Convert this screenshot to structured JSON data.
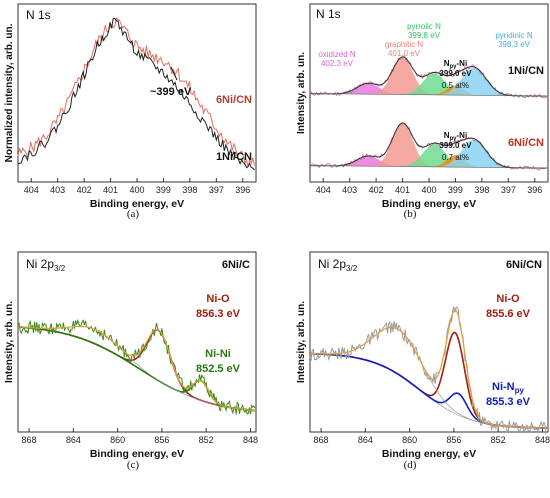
{
  "chart_data": [
    {
      "id": "a",
      "type": "line",
      "title": "N 1s",
      "xlabel": "Binding energy, eV",
      "ylabel": "Normalized intensity, arb. un.",
      "xlim": [
        404.5,
        395.5
      ],
      "x_reversed": true,
      "xticks": [
        404,
        403,
        402,
        401,
        400,
        399,
        398,
        397,
        396
      ],
      "caption": "(a)",
      "annotation": "~399 eV",
      "series": [
        {
          "name": "6Ni/CN",
          "color": "#e07060",
          "x": [
            404.5,
            404,
            403.5,
            403,
            402.5,
            402,
            401.5,
            401,
            400.8,
            400.5,
            400,
            399.5,
            399,
            398.5,
            398,
            397.5,
            397,
            396.5,
            396,
            395.5
          ],
          "y": [
            0.16,
            0.2,
            0.26,
            0.36,
            0.5,
            0.66,
            0.82,
            0.93,
            0.95,
            0.9,
            0.8,
            0.75,
            0.72,
            0.65,
            0.55,
            0.43,
            0.32,
            0.22,
            0.14,
            0.1
          ]
        },
        {
          "name": "1Ni/CN",
          "color": "#222222",
          "x": [
            404.5,
            404,
            403.5,
            403,
            402.5,
            402,
            401.5,
            401,
            400.8,
            400.5,
            400,
            399.5,
            399,
            398.5,
            398,
            397.5,
            397,
            396.5,
            396,
            395.5
          ],
          "y": [
            0.13,
            0.17,
            0.23,
            0.33,
            0.47,
            0.63,
            0.8,
            0.92,
            0.95,
            0.88,
            0.76,
            0.7,
            0.64,
            0.56,
            0.46,
            0.36,
            0.26,
            0.17,
            0.1,
            0.06
          ]
        }
      ]
    },
    {
      "id": "b",
      "type": "area",
      "title": "N 1s",
      "xlabel": "Binding energy, eV",
      "ylabel": "Intensity, arb. un.",
      "xlim": [
        404.5,
        395.5
      ],
      "x_reversed": true,
      "xticks": [
        404,
        403,
        402,
        401,
        400,
        399,
        398,
        397,
        396
      ],
      "caption": "(b)",
      "peak_labels": [
        {
          "name": "oxidized N",
          "energy": "402.3 eV",
          "color": "#e060d0"
        },
        {
          "name": "graphitic N",
          "energy": "401.0 eV",
          "color": "#f08080"
        },
        {
          "name": "pyrrolic N",
          "energy": "399.8 eV",
          "color": "#30c060"
        },
        {
          "name": "pyridinic N",
          "energy": "398.3 eV",
          "color": "#40b0e0"
        }
      ],
      "samples": [
        {
          "name": "1Ni/CN",
          "npyni_label": "Npy-Ni",
          "npyni_energy": "399.0 eV",
          "fraction": "0.5 at%",
          "components": [
            {
              "center": 402.3,
              "amp": 0.18,
              "width": 0.6,
              "color": "#e878e0"
            },
            {
              "center": 401.0,
              "amp": 0.62,
              "width": 0.55,
              "color": "#f29a90"
            },
            {
              "center": 399.8,
              "amp": 0.36,
              "width": 0.6,
              "color": "#70dc90"
            },
            {
              "center": 399.0,
              "amp": 0.16,
              "width": 0.45,
              "color": "#f08c00"
            },
            {
              "center": 398.3,
              "amp": 0.46,
              "width": 0.65,
              "color": "#88d4f4"
            }
          ]
        },
        {
          "name": "6Ni/CN",
          "npyni_label": "Npy-Ni",
          "npyni_energy": "399.0 eV",
          "fraction": "0.7 at%",
          "components": [
            {
              "center": 402.3,
              "amp": 0.17,
              "width": 0.6,
              "color": "#e878e0"
            },
            {
              "center": 401.0,
              "amp": 0.72,
              "width": 0.55,
              "color": "#f29a90"
            },
            {
              "center": 399.8,
              "amp": 0.38,
              "width": 0.6,
              "color": "#70dc90"
            },
            {
              "center": 399.0,
              "amp": 0.2,
              "width": 0.45,
              "color": "#f08c00"
            },
            {
              "center": 398.3,
              "amp": 0.46,
              "width": 0.65,
              "color": "#88d4f4"
            }
          ]
        }
      ]
    },
    {
      "id": "c",
      "type": "line",
      "title": "Ni 2p3/2",
      "title_main": "Ni 2p",
      "title_sub": "3/2",
      "sample": "6Ni/C",
      "xlabel": "Binding energy, eV",
      "ylabel": "Intensity, arb. un.",
      "xlim": [
        869,
        847.5
      ],
      "x_reversed": true,
      "xticks": [
        868,
        864,
        860,
        856,
        852,
        848
      ],
      "caption": "(c)",
      "peaks": [
        {
          "name": "Ni-O",
          "energy": "856.3 eV",
          "color": "#a02010"
        },
        {
          "name": "Ni-Ni",
          "energy": "852.5 eV",
          "color": "#2a7a10"
        }
      ]
    },
    {
      "id": "d",
      "type": "line",
      "title": "Ni 2p3/2",
      "title_main": "Ni 2p",
      "title_sub": "3/2",
      "sample": "6Ni/CN",
      "xlabel": "Binding energy, eV",
      "ylabel": "Intensity, arb. un.",
      "xlim": [
        869,
        847.5
      ],
      "x_reversed": true,
      "xticks": [
        868,
        864,
        860,
        856,
        852,
        848
      ],
      "caption": "(d)",
      "peaks": [
        {
          "name": "Ni-O",
          "energy": "855.6 eV",
          "color": "#a02010"
        },
        {
          "name": "Ni-Npy",
          "energy": "855.3 eV",
          "color": "#1020c0"
        }
      ]
    }
  ]
}
